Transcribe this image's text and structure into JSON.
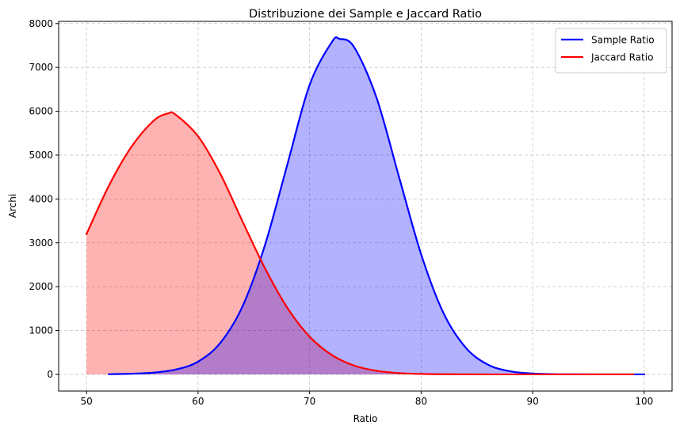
{
  "chart_data": {
    "type": "area",
    "title": "Distribuzione dei Sample e Jaccard Ratio",
    "xlabel": "Ratio",
    "ylabel": "Archi",
    "xlim": [
      47.5,
      102.5
    ],
    "ylim": [
      -380,
      8050
    ],
    "xticks": [
      50,
      60,
      70,
      80,
      90,
      100
    ],
    "yticks": [
      0,
      1000,
      2000,
      3000,
      4000,
      5000,
      6000,
      7000,
      8000
    ],
    "grid": true,
    "legend_position": "top-right",
    "series": [
      {
        "name": "Sample Ratio",
        "color": "#0000ff",
        "fill": "#0000ff",
        "x": [
          52,
          54,
          56,
          58,
          60,
          62,
          64,
          66,
          68,
          70,
          72,
          72.7,
          74,
          76,
          78,
          80,
          82,
          84,
          86,
          88,
          90,
          92,
          94,
          96,
          98,
          100
        ],
        "y": [
          5,
          15,
          40,
          110,
          290,
          720,
          1560,
          2950,
          4780,
          6600,
          7580,
          7650,
          7460,
          6310,
          4520,
          2740,
          1400,
          610,
          220,
          70,
          20,
          5,
          1,
          0,
          0,
          0
        ]
      },
      {
        "name": "Jaccard Ratio",
        "color": "#ff0000",
        "fill": "#ff0000",
        "x": [
          50,
          52,
          54,
          56,
          57.3,
          58,
          60,
          62,
          64,
          66,
          68,
          70,
          72,
          74,
          76,
          78,
          80,
          82,
          84,
          86,
          88,
          90,
          92,
          94,
          96,
          98,
          99
        ],
        "y": [
          3200,
          4300,
          5180,
          5780,
          5950,
          5920,
          5430,
          4570,
          3480,
          2420,
          1520,
          860,
          440,
          200,
          82,
          30,
          10,
          3,
          1,
          0,
          0,
          0,
          0,
          0,
          0,
          0,
          0
        ]
      }
    ]
  }
}
